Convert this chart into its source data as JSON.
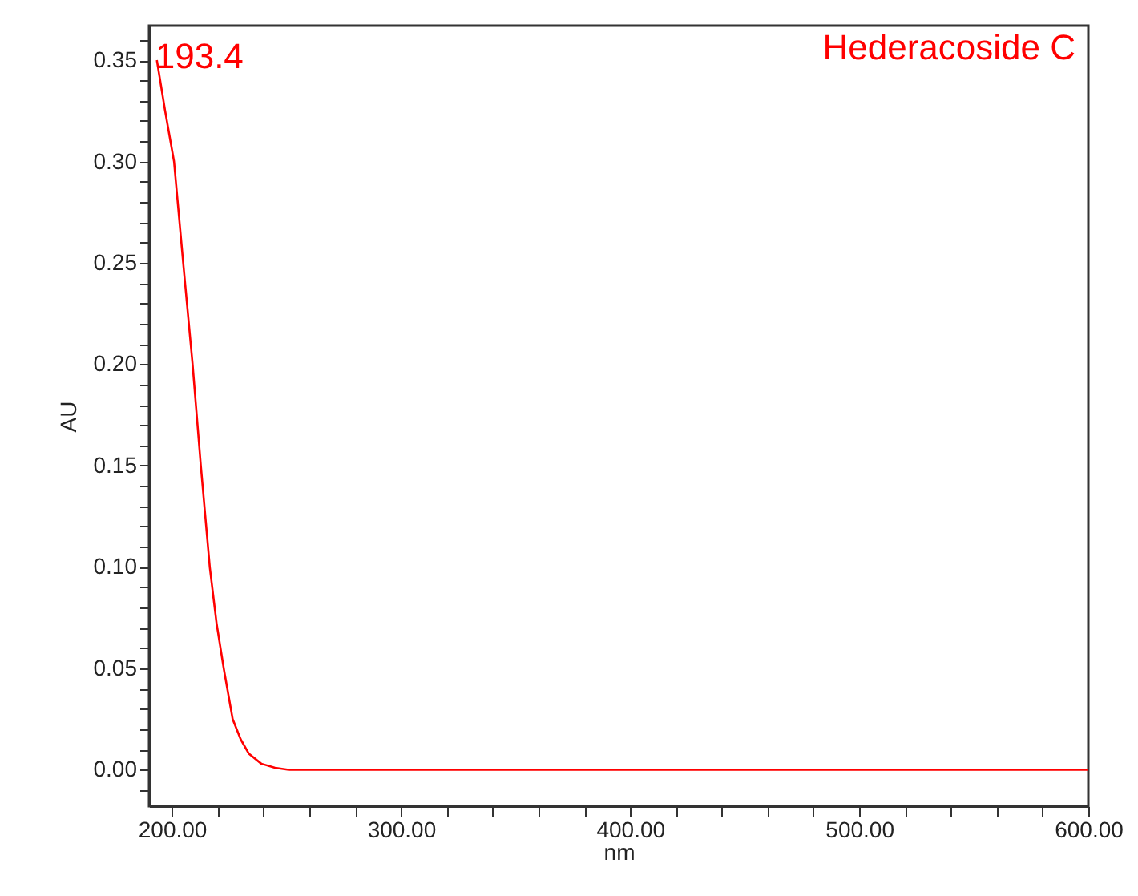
{
  "chart_data": {
    "type": "line",
    "xlabel": "nm",
    "ylabel": "AU",
    "x": [
      193.4,
      197,
      200.9,
      204.9,
      209,
      212.6,
      216.5,
      219.5,
      222.6,
      226.5,
      230,
      233.5,
      239,
      245,
      251,
      300,
      400,
      500,
      600
    ],
    "series": [
      {
        "name": "Hederacoside C",
        "color": "#ff0000",
        "values": [
          0.35,
          0.325,
          0.3,
          0.25,
          0.2,
          0.15,
          0.1,
          0.072,
          0.05,
          0.025,
          0.015,
          0.008,
          0.003,
          0.001,
          0,
          0,
          0,
          0,
          0
        ]
      }
    ],
    "annotations": [
      {
        "text": "193.4",
        "x": 193.4,
        "y": 0.35
      }
    ],
    "xlim": [
      190,
      600
    ],
    "ylim": [
      -0.018,
      0.367
    ],
    "xticks": [
      {
        "value": 200,
        "label": "200.00"
      },
      {
        "value": 220,
        "label": null
      },
      {
        "value": 240,
        "label": null
      },
      {
        "value": 260,
        "label": null
      },
      {
        "value": 280,
        "label": null
      },
      {
        "value": 300,
        "label": "300.00"
      },
      {
        "value": 320,
        "label": null
      },
      {
        "value": 340,
        "label": null
      },
      {
        "value": 360,
        "label": null
      },
      {
        "value": 380,
        "label": null
      },
      {
        "value": 400,
        "label": "400.00"
      },
      {
        "value": 420,
        "label": null
      },
      {
        "value": 440,
        "label": null
      },
      {
        "value": 460,
        "label": null
      },
      {
        "value": 480,
        "label": null
      },
      {
        "value": 500,
        "label": "500.00"
      },
      {
        "value": 520,
        "label": null
      },
      {
        "value": 540,
        "label": null
      },
      {
        "value": 560,
        "label": null
      },
      {
        "value": 580,
        "label": null
      },
      {
        "value": 600,
        "label": "600.00"
      }
    ],
    "yticks": [
      {
        "value": -0.01,
        "label": null
      },
      {
        "value": 0,
        "label": "0.00"
      },
      {
        "value": 0.01,
        "label": null
      },
      {
        "value": 0.02,
        "label": null
      },
      {
        "value": 0.03,
        "label": null
      },
      {
        "value": 0.04,
        "label": null
      },
      {
        "value": 0.05,
        "label": "0.05"
      },
      {
        "value": 0.06,
        "label": null
      },
      {
        "value": 0.07,
        "label": null
      },
      {
        "value": 0.08,
        "label": null
      },
      {
        "value": 0.09,
        "label": null
      },
      {
        "value": 0.1,
        "label": "0.10"
      },
      {
        "value": 0.11,
        "label": null
      },
      {
        "value": 0.12,
        "label": null
      },
      {
        "value": 0.13,
        "label": null
      },
      {
        "value": 0.14,
        "label": null
      },
      {
        "value": 0.15,
        "label": "0.15"
      },
      {
        "value": 0.16,
        "label": null
      },
      {
        "value": 0.17,
        "label": null
      },
      {
        "value": 0.18,
        "label": null
      },
      {
        "value": 0.19,
        "label": null
      },
      {
        "value": 0.2,
        "label": "0.20"
      },
      {
        "value": 0.21,
        "label": null
      },
      {
        "value": 0.22,
        "label": null
      },
      {
        "value": 0.23,
        "label": null
      },
      {
        "value": 0.24,
        "label": null
      },
      {
        "value": 0.25,
        "label": "0.25"
      },
      {
        "value": 0.26,
        "label": null
      },
      {
        "value": 0.27,
        "label": null
      },
      {
        "value": 0.28,
        "label": null
      },
      {
        "value": 0.29,
        "label": null
      },
      {
        "value": 0.3,
        "label": "0.30"
      },
      {
        "value": 0.31,
        "label": null
      },
      {
        "value": 0.32,
        "label": null
      },
      {
        "value": 0.33,
        "label": null
      },
      {
        "value": 0.34,
        "label": null
      },
      {
        "value": 0.35,
        "label": "0.35"
      },
      {
        "value": 0.36,
        "label": null
      }
    ]
  }
}
